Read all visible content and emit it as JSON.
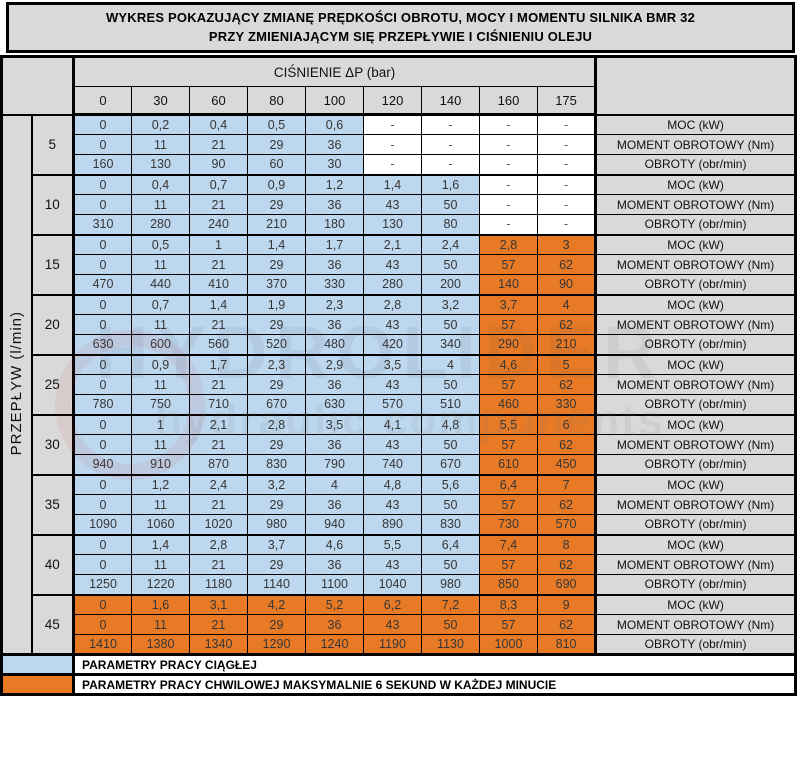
{
  "title": {
    "line1": "WYKRES POKAZUJĄCY ZMIANĘ PRĘDKOŚCI OBROTU, MOCY I MOMENTU SILNIKA BMR 32",
    "line2": "PRZY ZMIENIAJĄCYM SIĘ PRZEPŁYWIE I CIŚNIENIU OLEJU"
  },
  "colors": {
    "continuous_blue": "#BDD7EE",
    "momentary_orange": "#E87A25",
    "header_gray": "#D9D9D9",
    "border_black": "#000000"
  },
  "chart_data": {
    "type": "table",
    "title": "WYKRES POKAZUJĄCY ZMIANĘ PRĘDKOŚCI OBROTU, MOCY I MOMENTU SILNIKA BMR 32 PRZY ZMIENIAJĄCYM SIĘ PRZEPŁYWIE I CIŚNIENIU OLEJU",
    "column_group_label": "CIŚNIENIE ΔP (bar)",
    "columns_bar": [
      "0",
      "30",
      "60",
      "80",
      "100",
      "120",
      "140",
      "160",
      "175"
    ],
    "row_axis_label": "PRZEPŁYW (l/min)",
    "metric_labels": [
      "MOC (kW)",
      "MOMENT OBROTOWY (Nm)",
      "OBROTY (obr/min)"
    ],
    "groups": [
      {
        "flow": "5",
        "blue_cols": 5,
        "orange_cols": 0,
        "moc": [
          "0",
          "0,2",
          "0,4",
          "0,5",
          "0,6",
          "-",
          "-",
          "-",
          "-"
        ],
        "moment": [
          "0",
          "11",
          "21",
          "29",
          "36",
          "-",
          "-",
          "-",
          "-"
        ],
        "obroty": [
          "160",
          "130",
          "90",
          "60",
          "30",
          "-",
          "-",
          "-",
          "-"
        ]
      },
      {
        "flow": "10",
        "blue_cols": 7,
        "orange_cols": 0,
        "moc": [
          "0",
          "0,4",
          "0,7",
          "0,9",
          "1,2",
          "1,4",
          "1,6",
          "-",
          "-"
        ],
        "moment": [
          "0",
          "11",
          "21",
          "29",
          "36",
          "43",
          "50",
          "-",
          "-"
        ],
        "obroty": [
          "310",
          "280",
          "240",
          "210",
          "180",
          "130",
          "80",
          "-",
          "-"
        ]
      },
      {
        "flow": "15",
        "blue_cols": 7,
        "orange_cols": 2,
        "moc": [
          "0",
          "0,5",
          "1",
          "1,4",
          "1,7",
          "2,1",
          "2,4",
          "2,8",
          "3"
        ],
        "moment": [
          "0",
          "11",
          "21",
          "29",
          "36",
          "43",
          "50",
          "57",
          "62"
        ],
        "obroty": [
          "470",
          "440",
          "410",
          "370",
          "330",
          "280",
          "200",
          "140",
          "90"
        ]
      },
      {
        "flow": "20",
        "blue_cols": 7,
        "orange_cols": 2,
        "moc": [
          "0",
          "0,7",
          "1,4",
          "1,9",
          "2,3",
          "2,8",
          "3,2",
          "3,7",
          "4"
        ],
        "moment": [
          "0",
          "11",
          "21",
          "29",
          "36",
          "43",
          "50",
          "57",
          "62"
        ],
        "obroty": [
          "630",
          "600",
          "560",
          "520",
          "480",
          "420",
          "340",
          "290",
          "210"
        ]
      },
      {
        "flow": "25",
        "blue_cols": 7,
        "orange_cols": 2,
        "moc": [
          "0",
          "0,9",
          "1,7",
          "2,3",
          "2,9",
          "3,5",
          "4",
          "4,6",
          "5"
        ],
        "moment": [
          "0",
          "11",
          "21",
          "29",
          "36",
          "43",
          "50",
          "57",
          "62"
        ],
        "obroty": [
          "780",
          "750",
          "710",
          "670",
          "630",
          "570",
          "510",
          "460",
          "330"
        ]
      },
      {
        "flow": "30",
        "blue_cols": 7,
        "orange_cols": 2,
        "moc": [
          "0",
          "1",
          "2,1",
          "2,8",
          "3,5",
          "4,1",
          "4,8",
          "5,5",
          "6"
        ],
        "moment": [
          "0",
          "11",
          "21",
          "29",
          "36",
          "43",
          "50",
          "57",
          "62"
        ],
        "obroty": [
          "940",
          "910",
          "870",
          "830",
          "790",
          "740",
          "670",
          "610",
          "450"
        ]
      },
      {
        "flow": "35",
        "blue_cols": 7,
        "orange_cols": 2,
        "moc": [
          "0",
          "1,2",
          "2,4",
          "3,2",
          "4",
          "4,8",
          "5,6",
          "6,4",
          "7"
        ],
        "moment": [
          "0",
          "11",
          "21",
          "29",
          "36",
          "43",
          "50",
          "57",
          "62"
        ],
        "obroty": [
          "1090",
          "1060",
          "1020",
          "980",
          "940",
          "890",
          "830",
          "730",
          "570"
        ]
      },
      {
        "flow": "40",
        "blue_cols": 7,
        "orange_cols": 2,
        "moc": [
          "0",
          "1,4",
          "2,8",
          "3,7",
          "4,6",
          "5,5",
          "6,4",
          "7,4",
          "8"
        ],
        "moment": [
          "0",
          "11",
          "21",
          "29",
          "36",
          "43",
          "50",
          "57",
          "62"
        ],
        "obroty": [
          "1250",
          "1220",
          "1180",
          "1140",
          "1100",
          "1040",
          "980",
          "850",
          "690"
        ]
      },
      {
        "flow": "45",
        "blue_cols": 0,
        "orange_cols": 9,
        "moc": [
          "0",
          "1,6",
          "3,1",
          "4,2",
          "5,2",
          "6,2",
          "7,2",
          "8,3",
          "9"
        ],
        "moment": [
          "0",
          "11",
          "21",
          "29",
          "36",
          "43",
          "50",
          "57",
          "62"
        ],
        "obroty": [
          "1410",
          "1380",
          "1340",
          "1290",
          "1240",
          "1190",
          "1130",
          "1000",
          "810"
        ]
      }
    ]
  },
  "legend": [
    {
      "swatch_color": "#BDD7EE",
      "text": "PARAMETRY PRACY CIĄGŁEJ"
    },
    {
      "swatch_color": "#E87A25",
      "text": "PARAMETRY PRACY CHWILOWEJ MAKSYMALNIE 6 SEKUND W KAŻDEJ MINUCIE"
    }
  ],
  "watermark": {
    "big_text": "HYDROLIDER",
    "small_text": "hydraulic components"
  }
}
